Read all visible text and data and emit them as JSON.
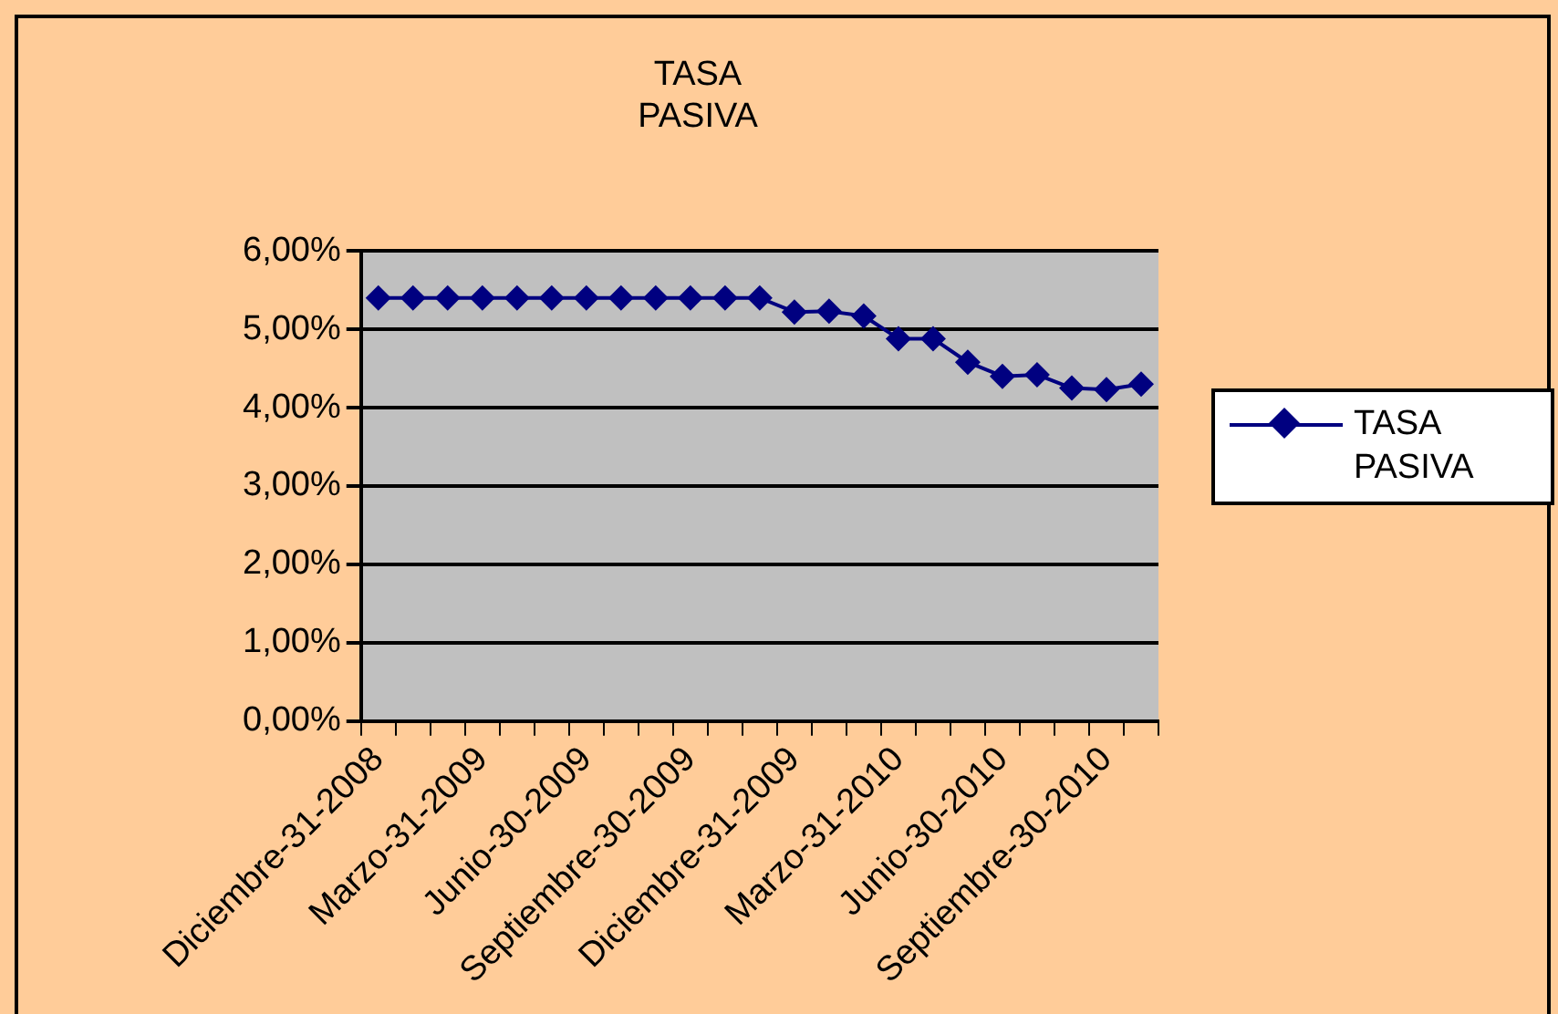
{
  "chart_data": {
    "type": "line",
    "title": "TASA\nPASIVA",
    "categories": [
      "Diciembre-31-2008",
      null,
      null,
      "Marzo-31-2009",
      null,
      null,
      "Junio-30-2009",
      null,
      null,
      "Septiembre-30-2009",
      null,
      null,
      "Diciembre-31-2009",
      null,
      null,
      "Marzo-31-2010",
      null,
      null,
      "Junio-30-2010",
      null,
      null,
      "Septiembre-30-2010",
      null
    ],
    "series": [
      {
        "name": "TASA PASIVA",
        "color": "#000080",
        "values": [
          5.4,
          5.4,
          5.4,
          5.4,
          5.4,
          5.4,
          5.4,
          5.4,
          5.4,
          5.4,
          5.4,
          5.4,
          5.22,
          5.23,
          5.17,
          4.88,
          4.88,
          4.58,
          4.4,
          4.42,
          4.25,
          4.23,
          4.3
        ]
      }
    ],
    "ylim": [
      0,
      6
    ],
    "yticks": [
      {
        "value": 0,
        "label": "0,00%"
      },
      {
        "value": 1,
        "label": "1,00%"
      },
      {
        "value": 2,
        "label": "2,00%"
      },
      {
        "value": 3,
        "label": "3,00%"
      },
      {
        "value": 4,
        "label": "4,00%"
      },
      {
        "value": 5,
        "label": "5,00%"
      },
      {
        "value": 6,
        "label": "6,00%"
      }
    ],
    "grid": "y",
    "legend": "right",
    "marker": "diamond",
    "line_style": "solid"
  }
}
